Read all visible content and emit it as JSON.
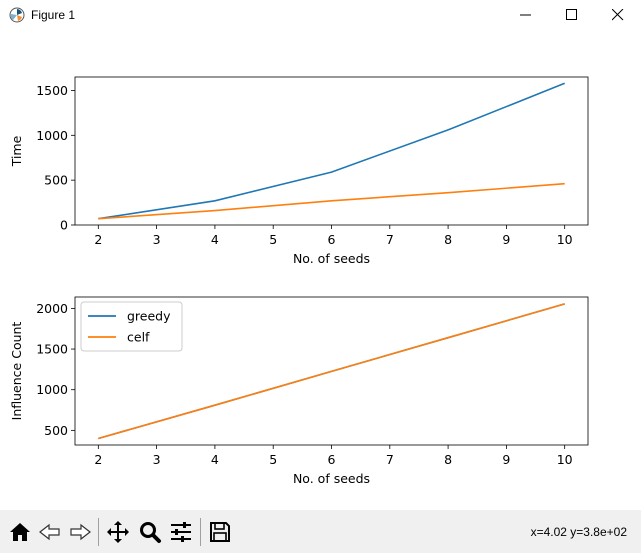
{
  "window": {
    "title": "Figure 1"
  },
  "toolbar": {
    "buttons": [
      {
        "name": "home-button",
        "icon": "home-icon"
      },
      {
        "name": "back-button",
        "icon": "back-arrow-icon"
      },
      {
        "name": "forward-button",
        "icon": "forward-arrow-icon"
      },
      {
        "name": "pan-button",
        "icon": "move-icon"
      },
      {
        "name": "zoom-button",
        "icon": "zoom-icon"
      },
      {
        "name": "configure-subplots-button",
        "icon": "sliders-icon"
      },
      {
        "name": "save-button",
        "icon": "save-icon"
      }
    ],
    "coords": "x=4.02 y=3.8e+02"
  },
  "colors": {
    "greedy": "#1f77b4",
    "celf": "#ff7f0e"
  },
  "chart_data": [
    {
      "type": "line",
      "xlabel": "No. of seeds",
      "ylabel": "Time",
      "xlim": [
        1.6,
        10.4
      ],
      "ylim": [
        0,
        1650
      ],
      "xticks": [
        2,
        3,
        4,
        5,
        6,
        7,
        8,
        9,
        10
      ],
      "yticks": [
        0,
        500,
        1000,
        1500
      ],
      "x": [
        2,
        4,
        6,
        8,
        10
      ],
      "series": [
        {
          "name": "greedy",
          "values": [
            70,
            270,
            590,
            1060,
            1580
          ]
        },
        {
          "name": "celf",
          "values": [
            70,
            160,
            270,
            360,
            460
          ]
        }
      ],
      "legend": null
    },
    {
      "type": "line",
      "xlabel": "No. of seeds",
      "ylabel": "Influence Count",
      "xlim": [
        1.6,
        10.4
      ],
      "ylim": [
        320,
        2140
      ],
      "xticks": [
        2,
        3,
        4,
        5,
        6,
        7,
        8,
        9,
        10
      ],
      "yticks": [
        500,
        1000,
        1500,
        2000
      ],
      "x": [
        2,
        4,
        6,
        8,
        10
      ],
      "series": [
        {
          "name": "greedy",
          "values": [
            400,
            810,
            1225,
            1640,
            2055
          ]
        },
        {
          "name": "celf",
          "values": [
            400,
            810,
            1225,
            1640,
            2055
          ]
        }
      ],
      "legend": "upper left"
    }
  ]
}
